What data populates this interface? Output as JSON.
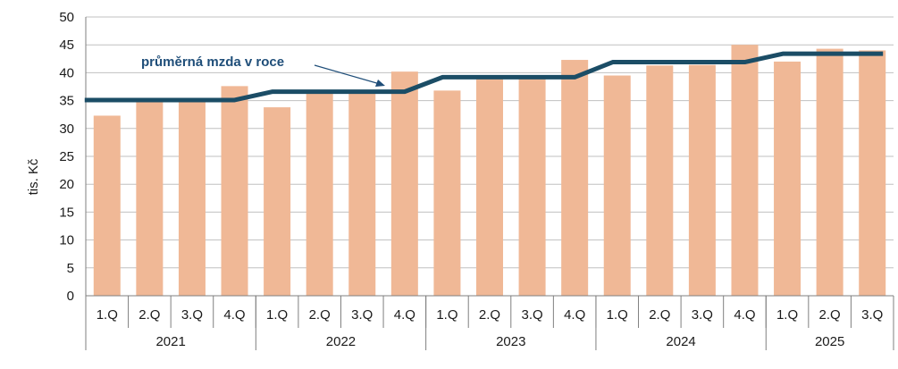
{
  "chart_data": {
    "type": "bar",
    "ylabel": "tis. Kč",
    "ylim": [
      0,
      50
    ],
    "yticks": [
      0,
      5,
      10,
      15,
      20,
      25,
      30,
      35,
      40,
      45,
      50
    ],
    "grid": true,
    "categories": [
      "1.Q",
      "2.Q",
      "3.Q",
      "4.Q",
      "1.Q",
      "2.Q",
      "3.Q",
      "4.Q",
      "1.Q",
      "2.Q",
      "3.Q",
      "4.Q",
      "1.Q",
      "2.Q",
      "3.Q",
      "4.Q",
      "1.Q",
      "2.Q",
      "3.Q"
    ],
    "groups": [
      {
        "label": "2021",
        "count": 4
      },
      {
        "label": "2022",
        "count": 4
      },
      {
        "label": "2023",
        "count": 4
      },
      {
        "label": "2024",
        "count": 4
      },
      {
        "label": "2025",
        "count": 3
      }
    ],
    "series": [
      {
        "type": "bar",
        "values": [
          32.3,
          35.2,
          35.1,
          37.6,
          33.8,
          36.3,
          36.5,
          40.2,
          36.8,
          39.2,
          39.1,
          42.3,
          39.5,
          41.3,
          41.4,
          45.0,
          42.0,
          44.3,
          44.0
        ]
      },
      {
        "name": "průměrná mzda v roce",
        "type": "line",
        "values": [
          35.1,
          35.1,
          35.1,
          35.1,
          36.6,
          36.6,
          36.6,
          36.6,
          39.2,
          39.2,
          39.2,
          39.2,
          41.9,
          41.9,
          41.9,
          41.9,
          43.4,
          43.4,
          43.4
        ]
      }
    ],
    "colors": {
      "bar": "#f0b896",
      "line": "#1b4d66",
      "grid": "#c0c0c0",
      "axis": "#7f7f7f",
      "annotation": "#1f4e79"
    }
  }
}
